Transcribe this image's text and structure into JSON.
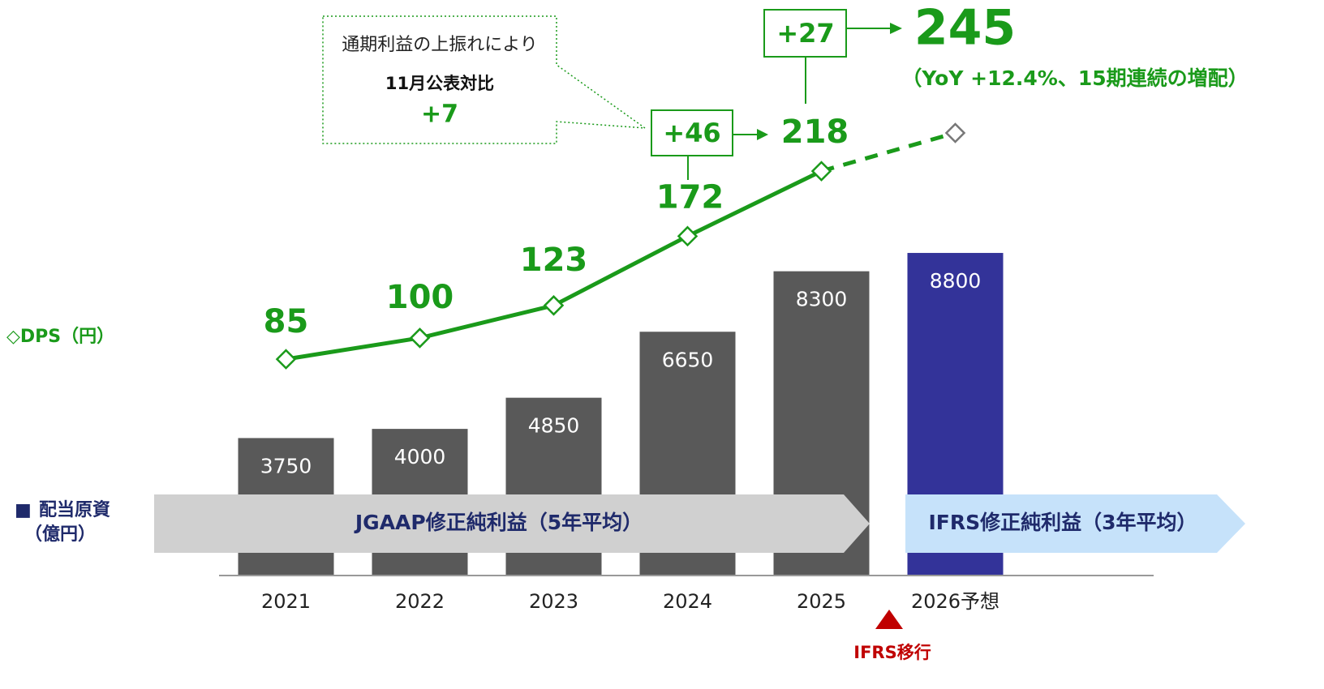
{
  "chart_data": {
    "type": "bar_line",
    "categories": [
      "2021",
      "2022",
      "2023",
      "2024",
      "2025",
      "2026予想"
    ],
    "series": [
      {
        "name": "配当原資",
        "unit": "（億円）",
        "type": "bar",
        "colors": [
          "#595959",
          "#595959",
          "#595959",
          "#595959",
          "#595959",
          "#333399"
        ],
        "values": [
          3750,
          4000,
          4850,
          6650,
          8300,
          8800
        ]
      },
      {
        "name": "◇DPS（円）",
        "type": "line",
        "axis": "y2",
        "color": "#1a9a1a",
        "forecast_color": "#777777",
        "dashed_last_segment": true,
        "values": [
          85,
          100,
          123,
          172,
          218,
          245
        ]
      }
    ],
    "ylim": [
      0,
      15700
    ],
    "y2lim": [
      -68,
      339
    ],
    "annotations": {
      "diff_2025": "+46",
      "diff_2026": "+27",
      "yoy_note": "（YoY +12.4%、15期連続の増配）",
      "callout_line1": "通期利益の上振れにより",
      "callout_line2": "11月公表対比",
      "callout_line3": "+7",
      "jgaap_band": "JGAAP修正純利益（5年平均）",
      "ifrs_band": "IFRS修正純利益（3年平均）",
      "ifrs_transition": "IFRS移行"
    }
  }
}
